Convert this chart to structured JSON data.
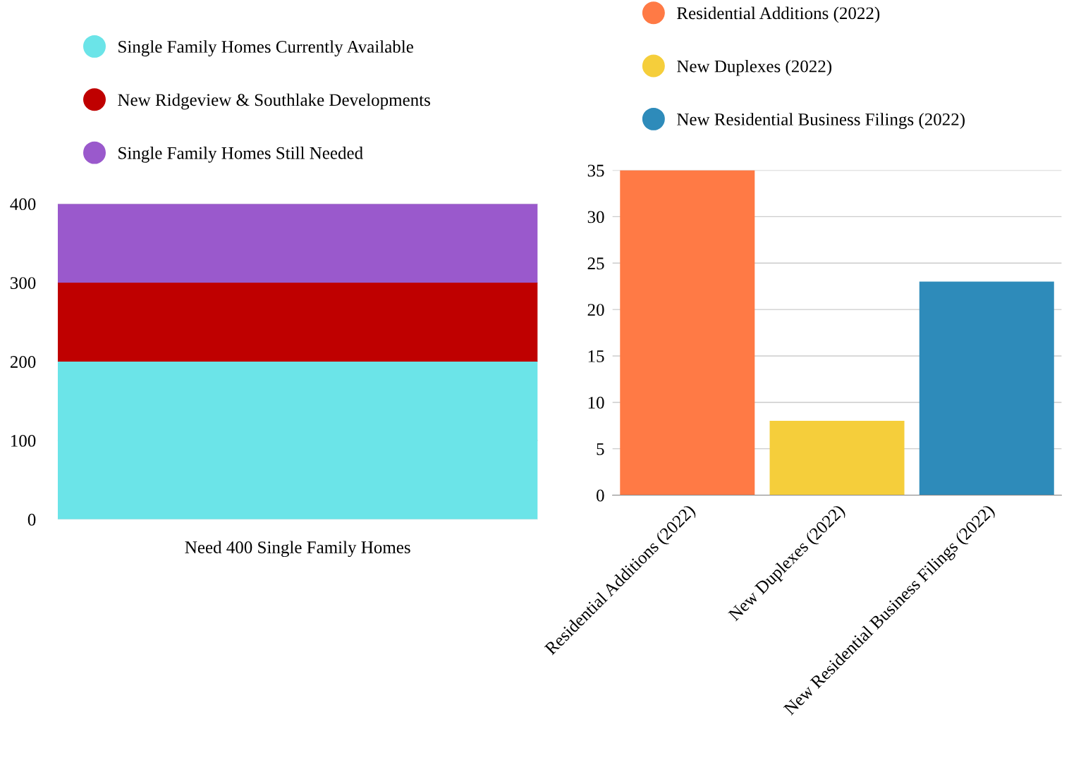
{
  "chart_data": [
    {
      "type": "bar",
      "stacked": true,
      "categories": [
        "Need 400 Single Family Homes"
      ],
      "series": [
        {
          "name": "Single Family Homes Currently Available",
          "color": "#6be4e8",
          "values": [
            200
          ]
        },
        {
          "name": "New Ridgeview & Southlake Developments",
          "color": "#bf0000",
          "values": [
            100
          ]
        },
        {
          "name": "Single Family Homes Still Needed",
          "color": "#9a59cc",
          "values": [
            100
          ]
        }
      ],
      "ylim": [
        0,
        400
      ],
      "yticks": [
        0,
        100,
        200,
        300,
        400
      ],
      "grid": "y",
      "legend": "top left",
      "marker": "circle"
    },
    {
      "type": "bar",
      "stacked": true,
      "categories": [
        "Residential Additions (2022)",
        "New Duplexes (2022)",
        "New Residential Business Filings (2022)"
      ],
      "series": [
        {
          "name": "Residential Additions (2022)",
          "color": "#ff7a45",
          "values": [
            35,
            null,
            null
          ]
        },
        {
          "name": "New Duplexes (2022)",
          "color": "#f5ce3b",
          "values": [
            null,
            8,
            null
          ]
        },
        {
          "name": "New Residential Business Filings (2022)",
          "color": "#2e8bba",
          "values": [
            null,
            null,
            23
          ]
        }
      ],
      "ylim": [
        0,
        35
      ],
      "yticks": [
        0,
        5,
        10,
        15,
        20,
        25,
        30,
        35
      ],
      "grid": "y",
      "legend": "top",
      "marker": "circle"
    }
  ]
}
